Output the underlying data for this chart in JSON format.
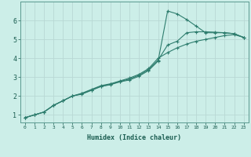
{
  "title": "",
  "xlabel": "Humidex (Indice chaleur)",
  "background_color": "#cceee8",
  "grid_color": "#b8d8d4",
  "line_color": "#2e7d6e",
  "xlim": [
    -0.5,
    23.5
  ],
  "ylim": [
    0.6,
    7.0
  ],
  "yticks": [
    1,
    2,
    3,
    4,
    5,
    6
  ],
  "xticks": [
    0,
    1,
    2,
    3,
    4,
    5,
    6,
    7,
    8,
    9,
    10,
    11,
    12,
    13,
    14,
    15,
    16,
    17,
    18,
    19,
    20,
    21,
    22,
    23
  ],
  "line1_x": [
    0,
    1,
    2,
    3,
    4,
    5,
    6,
    7,
    8,
    9,
    10,
    11,
    12,
    13,
    14,
    15,
    16,
    17,
    18,
    19,
    20,
    21,
    22,
    23
  ],
  "line1_y": [
    0.85,
    1.0,
    1.15,
    1.5,
    1.75,
    2.0,
    2.1,
    2.3,
    2.5,
    2.6,
    2.75,
    2.85,
    3.05,
    3.35,
    3.85,
    6.5,
    6.35,
    6.05,
    5.7,
    5.35,
    5.35,
    5.35,
    5.3,
    5.1
  ],
  "line2_x": [
    0,
    1,
    2,
    3,
    4,
    5,
    6,
    7,
    8,
    9,
    10,
    11,
    12,
    13,
    14,
    15,
    16,
    17,
    18,
    19,
    20,
    21,
    22,
    23
  ],
  "line2_y": [
    0.85,
    1.0,
    1.15,
    1.5,
    1.75,
    2.0,
    2.12,
    2.32,
    2.52,
    2.62,
    2.77,
    2.9,
    3.1,
    3.4,
    3.9,
    4.7,
    4.9,
    5.35,
    5.4,
    5.4,
    5.38,
    5.35,
    5.3,
    5.1
  ],
  "line3_x": [
    0,
    1,
    2,
    3,
    4,
    5,
    6,
    7,
    8,
    9,
    10,
    11,
    12,
    13,
    14,
    15,
    16,
    17,
    18,
    19,
    20,
    21,
    22,
    23
  ],
  "line3_y": [
    0.85,
    1.0,
    1.15,
    1.5,
    1.75,
    2.0,
    2.15,
    2.35,
    2.55,
    2.65,
    2.8,
    2.95,
    3.15,
    3.45,
    4.0,
    4.3,
    4.55,
    4.75,
    4.9,
    5.0,
    5.1,
    5.2,
    5.25,
    5.1
  ]
}
